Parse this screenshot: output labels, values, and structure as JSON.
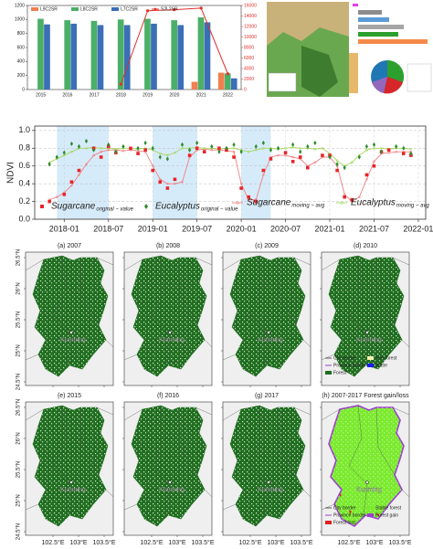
{
  "chart_data": [
    {
      "type": "bar",
      "categories": [
        "2015",
        "2016",
        "2017",
        "2018",
        "2019",
        "2020",
        "2021",
        "2022"
      ],
      "series": [
        {
          "name": "L9C2SR",
          "color": "#f07f4f",
          "values": [
            null,
            null,
            null,
            null,
            null,
            null,
            110,
            240
          ]
        },
        {
          "name": "L8C2SR",
          "color": "#4caf68",
          "values": [
            1010,
            990,
            980,
            1000,
            1010,
            990,
            1030,
            230
          ]
        },
        {
          "name": "L7C2SR",
          "color": "#3b6fb6",
          "values": [
            930,
            940,
            920,
            920,
            940,
            920,
            960,
            160
          ]
        },
        {
          "name": "S2L2SR",
          "color": "#e0302a",
          "axis": "y2",
          "values": [
            null,
            null,
            null,
            1000,
            15000,
            15200,
            15500,
            3000
          ]
        }
      ],
      "ylim": [
        0,
        1200
      ],
      "yticks": [
        0,
        200,
        400,
        600,
        800,
        1000,
        1200
      ],
      "y2lim": [
        0,
        16000
      ],
      "y2ticks": [
        0,
        2000,
        4000,
        6000,
        8000,
        10000,
        12000,
        14000,
        16000
      ]
    },
    {
      "type": "line",
      "ylabel": "NDVI",
      "x": [
        "2017-11",
        "2017-12",
        "2018-01",
        "2018-02",
        "2018-03",
        "2018-04",
        "2018-05",
        "2018-06",
        "2018-07",
        "2018-08",
        "2018-09",
        "2018-10",
        "2018-11",
        "2018-12",
        "2019-01",
        "2019-02",
        "2019-03",
        "2019-04",
        "2019-05",
        "2019-06",
        "2019-07",
        "2019-08",
        "2019-09",
        "2019-10",
        "2019-11",
        "2019-12",
        "2020-01",
        "2020-02",
        "2020-03",
        "2020-04",
        "2020-05",
        "2020-06",
        "2020-07",
        "2020-08",
        "2020-09",
        "2020-10",
        "2020-11",
        "2020-12",
        "2021-01",
        "2021-02",
        "2021-03",
        "2021-04",
        "2021-05",
        "2021-06",
        "2021-07",
        "2021-08",
        "2021-09",
        "2021-10",
        "2021-11",
        "2021-12"
      ],
      "series": [
        {
          "name": "Sugarcane",
          "sub": "original − value",
          "style": "scatter",
          "marker": "square",
          "color": "#e8242a",
          "values": [
            0.2,
            null,
            0.28,
            0.42,
            0.55,
            null,
            0.8,
            0.7,
            0.82,
            0.75,
            null,
            0.8,
            0.74,
            0.78,
            0.55,
            0.42,
            0.35,
            0.45,
            null,
            0.72,
            0.8,
            0.76,
            null,
            0.8,
            0.78,
            0.7,
            0.35,
            0.25,
            0.2,
            0.55,
            0.68,
            null,
            0.75,
            0.65,
            0.7,
            0.58,
            null,
            0.72,
            0.72,
            0.55,
            0.25,
            0.22,
            null,
            0.5,
            0.6,
            0.76,
            0.78,
            null,
            0.74,
            0.72
          ]
        },
        {
          "name": "Eucalyptus",
          "sub": "original − value",
          "style": "scatter",
          "marker": "diamond",
          "color": "#2e8b2e",
          "values": [
            0.62,
            0.7,
            0.75,
            0.85,
            0.82,
            0.88,
            0.78,
            null,
            0.84,
            0.76,
            0.82,
            null,
            0.8,
            0.86,
            0.8,
            0.7,
            0.68,
            null,
            0.84,
            0.78,
            0.86,
            null,
            0.82,
            0.76,
            0.8,
            0.84,
            0.76,
            null,
            0.82,
            0.86,
            0.78,
            0.8,
            null,
            0.84,
            0.76,
            0.82,
            0.86,
            null,
            0.7,
            0.62,
            0.58,
            null,
            0.7,
            0.82,
            0.84,
            0.76,
            null,
            0.82,
            0.8,
            0.74
          ]
        },
        {
          "name": "Sugarcane",
          "sub": "moving − avg",
          "style": "line",
          "color": "#f08080",
          "values": [
            0.22,
            0.25,
            0.3,
            0.38,
            0.5,
            0.62,
            0.72,
            0.76,
            0.78,
            0.78,
            0.77,
            0.78,
            0.77,
            0.76,
            0.6,
            0.45,
            0.4,
            0.4,
            0.42,
            0.7,
            0.78,
            0.79,
            0.78,
            0.78,
            0.77,
            0.76,
            0.4,
            0.22,
            0.22,
            0.5,
            0.7,
            0.72,
            0.72,
            0.7,
            0.68,
            0.6,
            0.64,
            0.7,
            0.7,
            0.6,
            0.28,
            0.2,
            0.25,
            0.45,
            0.65,
            0.74,
            0.75,
            0.76,
            0.76,
            0.76
          ]
        },
        {
          "name": "Eucalyptus",
          "sub": "moving − avg",
          "style": "line",
          "color": "#a4d65e",
          "values": [
            0.64,
            0.68,
            0.72,
            0.76,
            0.8,
            0.8,
            0.81,
            0.8,
            0.8,
            0.79,
            0.8,
            0.8,
            0.79,
            0.8,
            0.78,
            0.74,
            0.72,
            0.75,
            0.8,
            0.8,
            0.81,
            0.8,
            0.8,
            0.79,
            0.8,
            0.8,
            0.78,
            0.76,
            0.78,
            0.8,
            0.8,
            0.79,
            0.8,
            0.81,
            0.8,
            0.8,
            0.79,
            0.8,
            0.74,
            0.66,
            0.6,
            0.64,
            0.72,
            0.78,
            0.8,
            0.8,
            0.79,
            0.8,
            0.8,
            0.79
          ]
        }
      ],
      "shaded": [
        [
          "2017-12",
          "2018-07"
        ],
        [
          "2019-01",
          "2019-07"
        ],
        [
          "2020-01",
          "2020-05"
        ]
      ],
      "xlim": [
        "2017-09",
        "2022-02"
      ],
      "xticks": [
        "2018-01",
        "2018-07",
        "2019-01",
        "2019-07",
        "2020-01",
        "2020-07",
        "2021-01",
        "2021-07",
        "2022-01"
      ],
      "ylim": [
        0,
        1.05
      ],
      "yticks": [
        {
          "value": 0,
          "label": "0.0"
        },
        0.2,
        0.4,
        0.6,
        0.8,
        {
          "value": 1,
          "label": "1.0"
        }
      ],
      "grid": true
    }
  ],
  "maps": {
    "panels": [
      "(a) 2007",
      "(b) 2008",
      "(c) 2009",
      "(d) 2010",
      "(e) 2015",
      "(f) 2016",
      "(g) 2017",
      "(h) 2007-2017 Forest gain/loss"
    ],
    "city": "Kunming",
    "lat_labels": [
      "26.5°N",
      "26°N",
      "25.5°N",
      "25°N",
      "24.5°N"
    ],
    "lon_labels": [
      "102.5°E",
      "103°E",
      "103.5°E"
    ],
    "legend_cover": [
      "City border",
      "Non-forest",
      "Province border",
      "Water",
      "Forest"
    ],
    "legend_change": [
      "City border",
      "Stable forest",
      "Province border",
      "Forest gain",
      "Forest loss"
    ]
  }
}
